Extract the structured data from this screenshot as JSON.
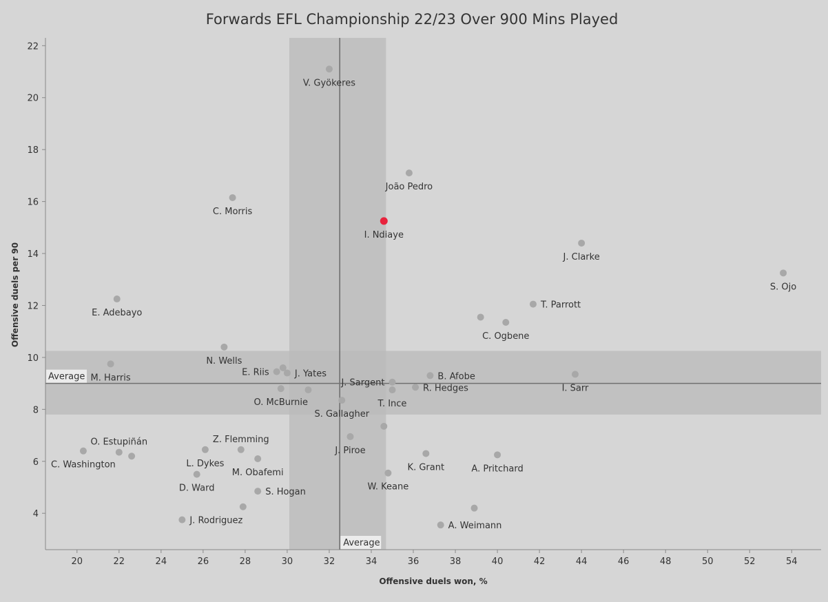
{
  "chart_data": {
    "type": "scatter",
    "title": "Forwards EFL Championship 22/23 Over 900 Mins Played",
    "xlabel": "Offensive duels won, %",
    "ylabel": "Offensive duels per 90",
    "xlim": [
      18.5,
      55.4
    ],
    "ylim": [
      2.6,
      22.3
    ],
    "xticks": [
      20,
      22,
      24,
      26,
      28,
      30,
      32,
      34,
      36,
      38,
      40,
      42,
      44,
      46,
      48,
      50,
      52,
      54
    ],
    "yticks": [
      4,
      6,
      8,
      10,
      12,
      14,
      16,
      18,
      20,
      22
    ],
    "x_average": 32.5,
    "y_average": 9.0,
    "x_average_label": "Average",
    "y_average_label": "Average",
    "x_band": [
      30.1,
      34.7
    ],
    "y_band": [
      7.8,
      10.25
    ],
    "grid": false,
    "colors": {
      "point": "#a8a8a8",
      "highlight": "#e8233d",
      "band": "#b9b9b9",
      "average_line": "#707070"
    },
    "points": [
      {
        "label": "V. Gyökeres",
        "x": 32.0,
        "y": 21.1,
        "label_pos": "below"
      },
      {
        "label": "João Pedro",
        "x": 35.8,
        "y": 17.1,
        "label_pos": "below"
      },
      {
        "label": "C. Morris",
        "x": 27.4,
        "y": 16.15,
        "label_pos": "below"
      },
      {
        "label": "I. Ndiaye",
        "x": 34.6,
        "y": 15.25,
        "label_pos": "below",
        "highlight": true
      },
      {
        "label": "J. Clarke",
        "x": 44.0,
        "y": 14.4,
        "label_pos": "below"
      },
      {
        "label": "S. Ojo",
        "x": 53.6,
        "y": 13.25,
        "label_pos": "below"
      },
      {
        "label": "E. Adebayo",
        "x": 21.9,
        "y": 12.25,
        "label_pos": "below"
      },
      {
        "label": "T. Parrott",
        "x": 41.7,
        "y": 12.05,
        "label_pos": "right"
      },
      {
        "label": "",
        "x": 39.2,
        "y": 11.55
      },
      {
        "label": "C. Ogbene",
        "x": 40.4,
        "y": 11.35,
        "label_pos": "below"
      },
      {
        "label": "N. Wells",
        "x": 27.0,
        "y": 10.4,
        "label_pos": "below"
      },
      {
        "label": "M. Harris",
        "x": 21.6,
        "y": 9.75,
        "label_pos": "below"
      },
      {
        "label": "",
        "x": 29.8,
        "y": 9.6
      },
      {
        "label": "E. Riis",
        "x": 29.5,
        "y": 9.45,
        "label_pos": "left"
      },
      {
        "label": "J. Yates",
        "x": 30.0,
        "y": 9.4,
        "label_pos": "right"
      },
      {
        "label": "I. Sarr",
        "x": 43.7,
        "y": 9.35,
        "label_pos": "below"
      },
      {
        "label": "B. Afobe",
        "x": 36.8,
        "y": 9.3,
        "label_pos": "right"
      },
      {
        "label": "J. Sargent",
        "x": 35.0,
        "y": 9.05,
        "label_pos": "left"
      },
      {
        "label": "R. Hedges",
        "x": 36.1,
        "y": 8.85,
        "label_pos": "right"
      },
      {
        "label": "O. McBurnie",
        "x": 29.7,
        "y": 8.8,
        "label_pos": "below"
      },
      {
        "label": "",
        "x": 31.0,
        "y": 8.75
      },
      {
        "label": "T. Ince",
        "x": 35.0,
        "y": 8.75,
        "label_pos": "below"
      },
      {
        "label": "S. Gallagher",
        "x": 32.6,
        "y": 8.35,
        "label_pos": "below"
      },
      {
        "label": "",
        "x": 34.6,
        "y": 7.35
      },
      {
        "label": "J. Piroe",
        "x": 33.0,
        "y": 6.95,
        "label_pos": "below"
      },
      {
        "label": "Z. Flemming",
        "x": 27.8,
        "y": 6.45,
        "label_pos": "above"
      },
      {
        "label": "L. Dykes",
        "x": 26.1,
        "y": 6.45,
        "label_pos": "below"
      },
      {
        "label": "C. Washington",
        "x": 20.3,
        "y": 6.4,
        "label_pos": "below"
      },
      {
        "label": "O. Estupiñán",
        "x": 22.0,
        "y": 6.35,
        "label_pos": "above"
      },
      {
        "label": "K. Grant",
        "x": 36.6,
        "y": 6.3,
        "label_pos": "below"
      },
      {
        "label": "A. Pritchard",
        "x": 40.0,
        "y": 6.25,
        "label_pos": "below"
      },
      {
        "label": "",
        "x": 22.6,
        "y": 6.2
      },
      {
        "label": "M. Obafemi",
        "x": 28.6,
        "y": 6.1,
        "label_pos": "below"
      },
      {
        "label": "W. Keane",
        "x": 34.8,
        "y": 5.55,
        "label_pos": "below"
      },
      {
        "label": "D. Ward",
        "x": 25.7,
        "y": 5.5,
        "label_pos": "below"
      },
      {
        "label": "S. Hogan",
        "x": 28.6,
        "y": 4.85,
        "label_pos": "right"
      },
      {
        "label": "",
        "x": 27.9,
        "y": 4.25
      },
      {
        "label": "",
        "x": 38.9,
        "y": 4.2
      },
      {
        "label": "J. Rodriguez",
        "x": 25.0,
        "y": 3.75,
        "label_pos": "right"
      },
      {
        "label": "A. Weimann",
        "x": 37.3,
        "y": 3.55,
        "label_pos": "right"
      }
    ]
  }
}
